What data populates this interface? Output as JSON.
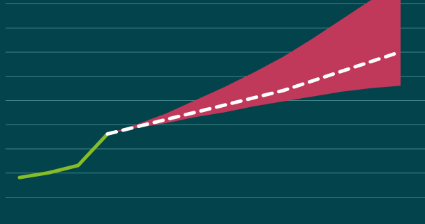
{
  "colors": {
    "background": "#03444c",
    "grid": "#3f8488",
    "historical": "#86bc25",
    "projection": "#ffffff",
    "band": "#c0395a"
  },
  "chart_data": {
    "type": "line",
    "grid": true,
    "legend": "none",
    "xlim": [
      0,
      14
    ],
    "ylim": [
      0,
      8
    ],
    "series": [
      {
        "role": "historical",
        "style": "solid",
        "x": [
          0,
          1,
          2,
          3
        ],
        "y": [
          0.8,
          1.0,
          1.3,
          2.6
        ]
      },
      {
        "role": "projection",
        "style": "dashed",
        "x": [
          3,
          4,
          5,
          6,
          7,
          8,
          9,
          10,
          11,
          12,
          13
        ],
        "y": [
          2.6,
          2.9,
          3.2,
          3.5,
          3.8,
          4.1,
          4.4,
          4.8,
          5.2,
          5.6,
          6.0
        ]
      }
    ],
    "band": {
      "x": [
        3,
        4,
        5,
        6,
        7,
        8,
        9,
        10,
        11,
        12,
        13
      ],
      "lower": [
        2.6,
        2.85,
        3.05,
        3.3,
        3.5,
        3.75,
        3.95,
        4.15,
        4.35,
        4.5,
        4.6
      ],
      "upper": [
        2.6,
        3.0,
        3.45,
        4.0,
        4.55,
        5.15,
        5.8,
        6.55,
        7.35,
        8.15,
        9.0
      ]
    }
  }
}
